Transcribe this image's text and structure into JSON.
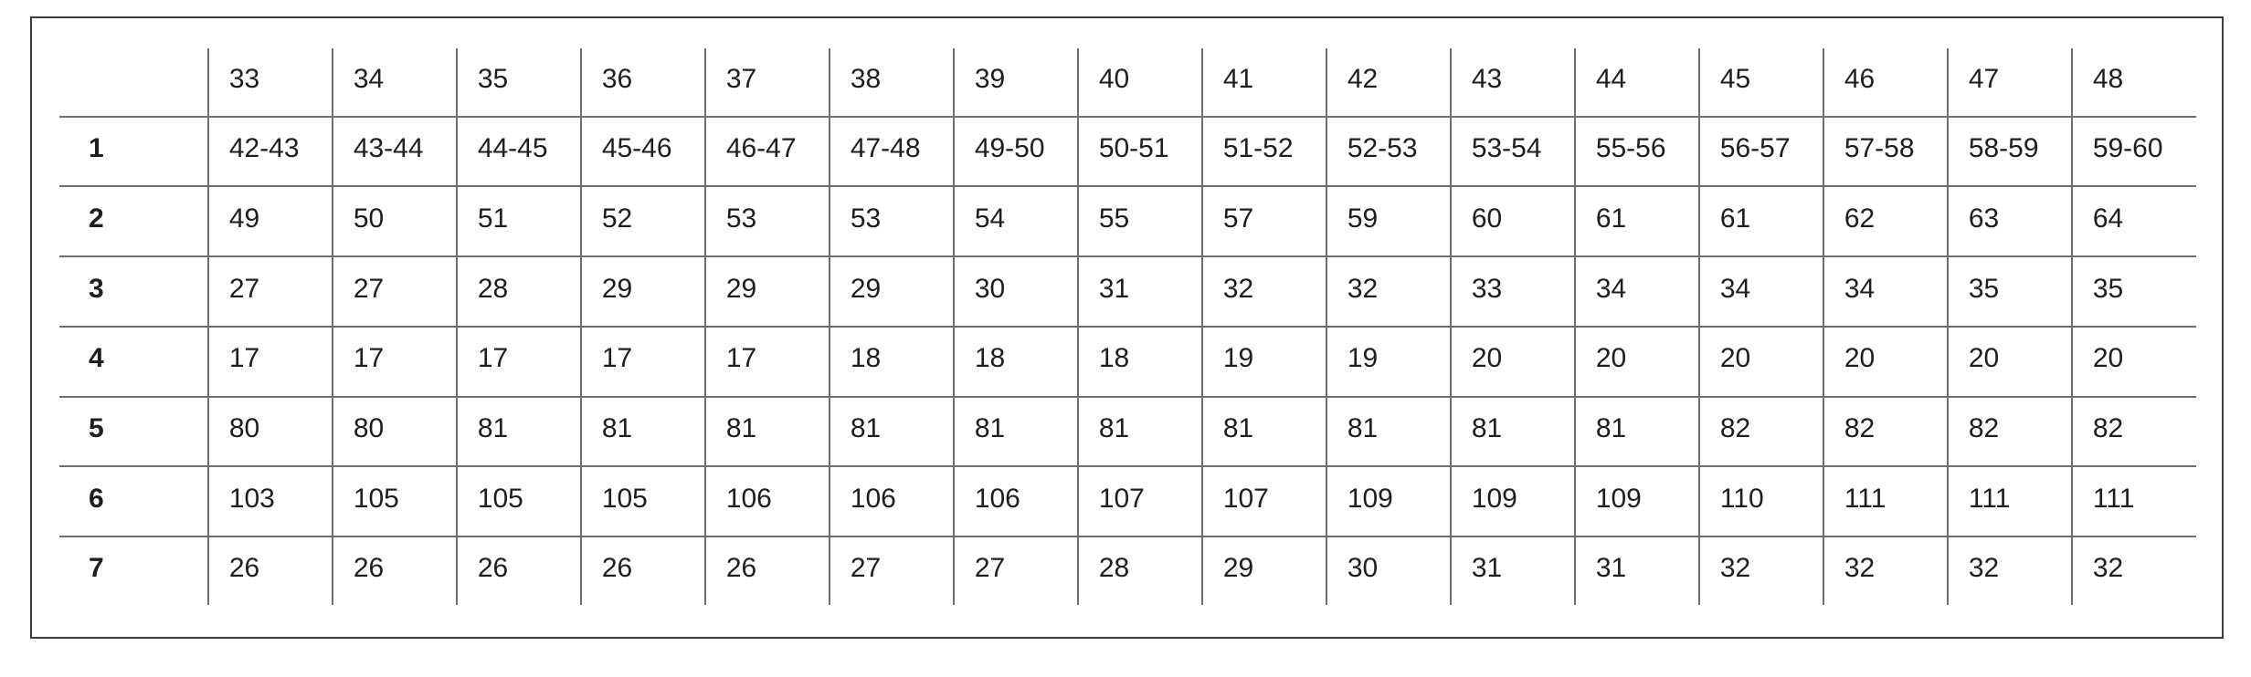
{
  "colors": {
    "background": "#ffffff",
    "outer_border": "#3c3c3c",
    "grid_line": "#6f6f6f",
    "text": "#1e1e1e"
  },
  "chart_data": {
    "type": "table",
    "title": "",
    "columns": [
      "",
      "33",
      "34",
      "35",
      "36",
      "37",
      "38",
      "39",
      "40",
      "41",
      "42",
      "43",
      "44",
      "45",
      "46",
      "47",
      "48"
    ],
    "rows": [
      {
        "label": "1",
        "values": [
          "42-43",
          "43-44",
          "44-45",
          "45-46",
          "46-47",
          "47-48",
          "49-50",
          "50-51",
          "51-52",
          "52-53",
          "53-54",
          "55-56",
          "56-57",
          "57-58",
          "58-59",
          "59-60"
        ]
      },
      {
        "label": "2",
        "values": [
          "49",
          "50",
          "51",
          "52",
          "53",
          "53",
          "54",
          "55",
          "57",
          "59",
          "60",
          "61",
          "61",
          "62",
          "63",
          "64"
        ]
      },
      {
        "label": "3",
        "values": [
          "27",
          "27",
          "28",
          "29",
          "29",
          "29",
          "30",
          "31",
          "32",
          "32",
          "33",
          "34",
          "34",
          "34",
          "35",
          "35"
        ]
      },
      {
        "label": "4",
        "values": [
          "17",
          "17",
          "17",
          "17",
          "17",
          "18",
          "18",
          "18",
          "19",
          "19",
          "20",
          "20",
          "20",
          "20",
          "20",
          "20"
        ]
      },
      {
        "label": "5",
        "values": [
          "80",
          "80",
          "81",
          "81",
          "81",
          "81",
          "81",
          "81",
          "81",
          "81",
          "81",
          "81",
          "82",
          "82",
          "82",
          "82"
        ]
      },
      {
        "label": "6",
        "values": [
          "103",
          "105",
          "105",
          "105",
          "106",
          "106",
          "106",
          "107",
          "107",
          "109",
          "109",
          "109",
          "110",
          "111",
          "111",
          "111"
        ]
      },
      {
        "label": "7",
        "values": [
          "26",
          "26",
          "26",
          "26",
          "26",
          "27",
          "27",
          "28",
          "29",
          "30",
          "31",
          "31",
          "32",
          "32",
          "32",
          "32"
        ]
      }
    ]
  }
}
